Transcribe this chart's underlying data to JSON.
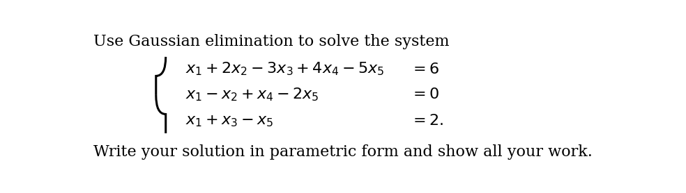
{
  "title_text": "Use Gaussian elimination to solve the system",
  "footer_text": "Write your solution in parametric form and show all your work.",
  "eq_latex": [
    "$x_1 + 2x_2 - 3x_3 + 4x_4 - 5x_5$",
    "$x_1 - x_2 + x_4 - 2x_5$",
    "$x_1 + x_3 - x_5$"
  ],
  "rhs_latex": [
    "$= 6$",
    "$= 0$",
    "$= 2.$"
  ],
  "bg_color": "#ffffff",
  "text_color": "#000000",
  "title_fontsize": 16,
  "eq_fontsize": 16,
  "footer_fontsize": 16,
  "fig_width": 9.84,
  "fig_height": 2.78,
  "dpi": 100
}
